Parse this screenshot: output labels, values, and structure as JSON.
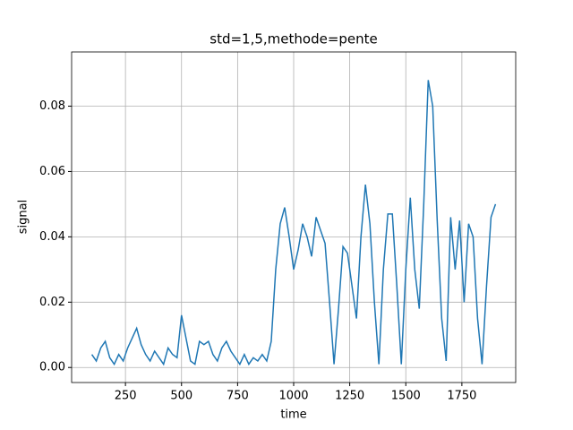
{
  "chart_data": {
    "type": "line",
    "title": "std=1,5,methode=pente",
    "x_label": "time",
    "y_label": "signal",
    "x": [
      100,
      120,
      140,
      160,
      180,
      200,
      220,
      240,
      260,
      280,
      300,
      320,
      340,
      360,
      380,
      400,
      420,
      440,
      460,
      480,
      500,
      520,
      540,
      560,
      580,
      600,
      620,
      640,
      660,
      680,
      700,
      720,
      740,
      760,
      780,
      800,
      820,
      840,
      860,
      880,
      900,
      920,
      940,
      960,
      980,
      1000,
      1020,
      1040,
      1060,
      1080,
      1100,
      1120,
      1140,
      1160,
      1180,
      1200,
      1220,
      1240,
      1260,
      1280,
      1300,
      1320,
      1340,
      1360,
      1380,
      1400,
      1420,
      1440,
      1460,
      1480,
      1500,
      1520,
      1540,
      1560,
      1580,
      1600,
      1620,
      1640,
      1660,
      1680,
      1700,
      1720,
      1740,
      1760,
      1780,
      1800,
      1820,
      1840,
      1860,
      1880,
      1900
    ],
    "series": [
      {
        "color": "#1f77b4",
        "values": [
          0.004,
          0.002,
          0.006,
          0.008,
          0.003,
          0.001,
          0.004,
          0.002,
          0.006,
          0.009,
          0.012,
          0.007,
          0.004,
          0.002,
          0.005,
          0.003,
          0.001,
          0.006,
          0.004,
          0.003,
          0.016,
          0.009,
          0.002,
          0.001,
          0.008,
          0.007,
          0.008,
          0.004,
          0.002,
          0.006,
          0.008,
          0.005,
          0.003,
          0.001,
          0.004,
          0.001,
          0.003,
          0.002,
          0.004,
          0.002,
          0.008,
          0.03,
          0.044,
          0.049,
          0.04,
          0.03,
          0.036,
          0.044,
          0.04,
          0.034,
          0.046,
          0.042,
          0.038,
          0.02,
          0.001,
          0.018,
          0.037,
          0.035,
          0.025,
          0.015,
          0.04,
          0.056,
          0.044,
          0.02,
          0.001,
          0.03,
          0.047,
          0.047,
          0.025,
          0.001,
          0.03,
          0.052,
          0.03,
          0.018,
          0.05,
          0.088,
          0.08,
          0.045,
          0.015,
          0.002,
          0.046,
          0.03,
          0.045,
          0.02,
          0.044,
          0.04,
          0.015,
          0.001,
          0.025,
          0.046,
          0.05
        ]
      }
    ],
    "xlim": [
      10,
      1990
    ],
    "ylim": [
      -0.0046,
      0.0966
    ],
    "xticks": [
      250,
      500,
      750,
      1000,
      1250,
      1500,
      1750
    ],
    "yticks": [
      {
        "value": 0,
        "label": "0.00"
      },
      {
        "value": 0.02,
        "label": "0.02"
      },
      {
        "value": 0.04,
        "label": "0.04"
      },
      {
        "value": 0.06,
        "label": "0.06"
      },
      {
        "value": 0.08,
        "label": "0.08"
      }
    ],
    "grid": true
  }
}
